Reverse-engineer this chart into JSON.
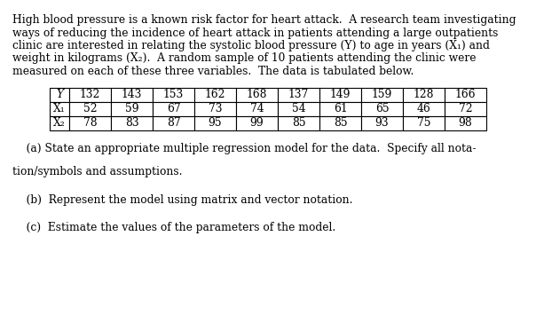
{
  "intro_line1": "High blood pressure is a known risk factor for heart attack.  A research team investigating",
  "intro_line2": "ways of reducing the incidence of heart attack in patients attending a large outpatients",
  "intro_line3": "clinic are interested in relating the systolic blood pressure (Y) to age in years (X₁) and",
  "intro_line4": "weight in kilograms (X₂).  A random sample of 10 patients attending the clinic were",
  "intro_line5": "measured on each of these three variables.  The data is tabulated below.",
  "table_row_labels": [
    "Y",
    "X₁",
    "X₂"
  ],
  "table_data": [
    [
      "132",
      "143",
      "153",
      "162",
      "168",
      "137",
      "149",
      "159",
      "128",
      "166"
    ],
    [
      "52",
      "59",
      "67",
      "73",
      "74",
      "54",
      "61",
      "65",
      "46",
      "72"
    ],
    [
      "78",
      "83",
      "87",
      "95",
      "99",
      "85",
      "85",
      "93",
      "75",
      "98"
    ]
  ],
  "q_a_line1": "    (a) State an appropriate multiple regression model for the data.  Specify all nota-",
  "q_a_line2": "tion/symbols and assumptions.",
  "q_b": "    (b)  Represent the model using matrix and vector notation.",
  "q_c": "    (c)  Estimate the values of the parameters of the model.",
  "bg_color": "#ffffff",
  "text_color": "#000000",
  "body_font_size": 8.8,
  "table_font_size": 8.8,
  "fig_width": 6.04,
  "fig_height": 3.55,
  "dpi": 100
}
